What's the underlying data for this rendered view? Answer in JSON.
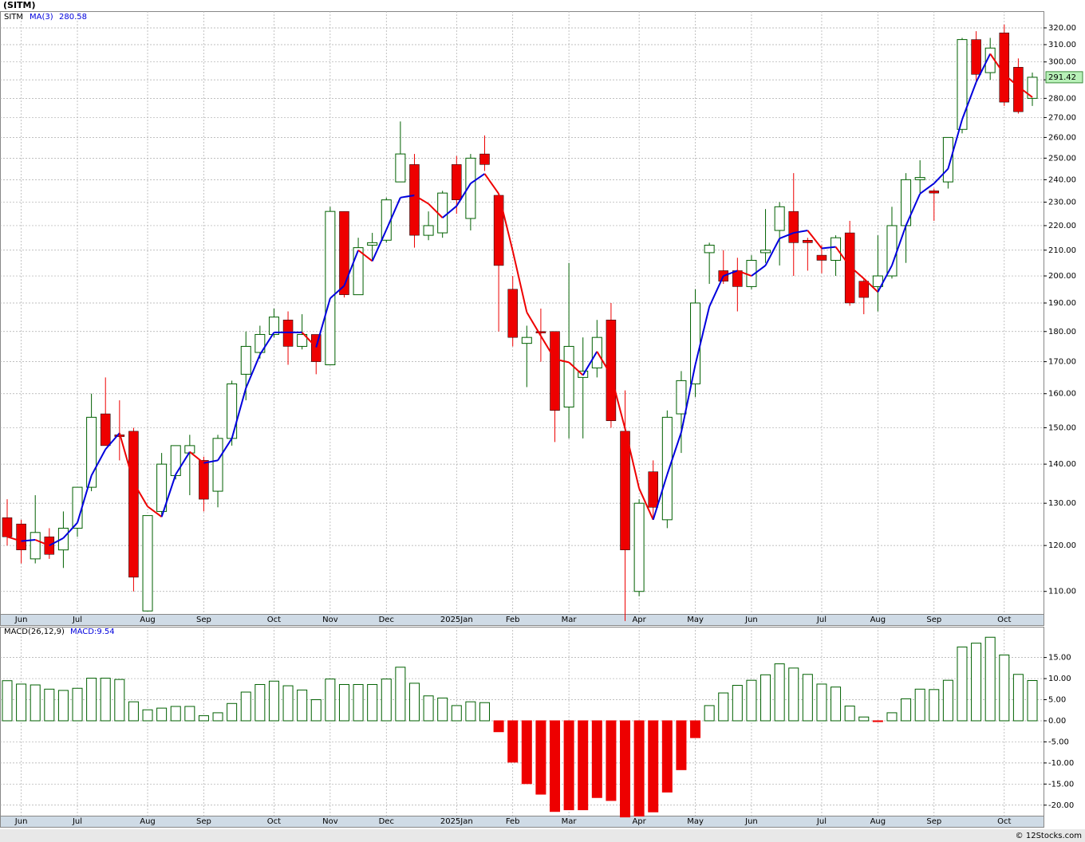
{
  "chart_data": [
    {
      "type": "candlestick",
      "title": "(SITM)",
      "symbol": "SITM",
      "categories": [
        null,
        "Jun",
        null,
        null,
        null,
        "Jul",
        null,
        null,
        null,
        null,
        "Aug",
        null,
        null,
        null,
        "Sep",
        null,
        null,
        null,
        null,
        "Oct",
        null,
        null,
        null,
        "Nov",
        null,
        null,
        null,
        "Dec",
        null,
        null,
        null,
        null,
        "2025Jan",
        null,
        null,
        null,
        "Feb",
        null,
        null,
        null,
        "Mar",
        null,
        null,
        null,
        null,
        "Apr",
        null,
        null,
        null,
        "May",
        null,
        null,
        null,
        "Jun",
        null,
        null,
        null,
        null,
        "Jul",
        null,
        null,
        null,
        "Aug",
        null,
        null,
        null,
        "Sep",
        null,
        null,
        null,
        null,
        "Oct",
        null,
        null
      ],
      "open": [
        126.5,
        125,
        117,
        122,
        119,
        124,
        134,
        154,
        148,
        149,
        106,
        128,
        137,
        143,
        141,
        133,
        147,
        166,
        173,
        179,
        184,
        175,
        179,
        169,
        226,
        193,
        212,
        214,
        239,
        247,
        216,
        217,
        247,
        223,
        252,
        233,
        195,
        176,
        180,
        180,
        156,
        165,
        168,
        184,
        149,
        110,
        138,
        126,
        154,
        163,
        209,
        202,
        202,
        196,
        209,
        218,
        226,
        214,
        208,
        206,
        217,
        198,
        196,
        200,
        220,
        240,
        235,
        239,
        264,
        313,
        294,
        317,
        297,
        280
      ],
      "high": [
        131,
        126,
        132,
        124,
        128,
        134,
        160,
        165,
        158,
        150,
        127,
        143,
        145,
        148,
        142,
        148,
        164,
        180,
        182,
        188,
        187,
        186,
        179,
        228,
        226,
        215,
        217,
        232,
        268,
        252,
        226,
        235,
        251,
        252,
        261,
        234,
        200,
        182,
        188,
        180,
        205,
        178,
        184,
        190,
        161,
        131,
        141,
        155,
        167,
        195,
        213,
        210,
        207,
        208,
        227,
        230,
        243,
        215,
        212,
        216,
        222,
        199,
        216,
        228,
        243,
        249,
        236,
        260,
        314,
        318,
        314,
        322,
        302,
        294
      ],
      "low": [
        120,
        116,
        116,
        117,
        115,
        122,
        133,
        145,
        141,
        110,
        106,
        127,
        136,
        132,
        128,
        129,
        145,
        158,
        171,
        178,
        169,
        174,
        166,
        169,
        192,
        193,
        206,
        213,
        239,
        211,
        214,
        215,
        225,
        218,
        244,
        180,
        175,
        162,
        170,
        146,
        147,
        147,
        165,
        150,
        104,
        109,
        126,
        124,
        143,
        159,
        197,
        197,
        187,
        195,
        205,
        204,
        200,
        202,
        201,
        200,
        189,
        186,
        187,
        199,
        205,
        234,
        222,
        236,
        262,
        289,
        290,
        276,
        272,
        276
      ],
      "close": [
        122,
        119,
        123,
        118,
        124,
        134,
        153,
        145,
        147.5,
        113,
        127,
        140,
        145,
        145,
        131,
        147,
        163,
        175,
        179,
        185,
        175,
        179,
        170,
        226,
        193,
        211,
        213,
        231,
        252,
        216,
        220,
        234,
        231,
        250,
        247,
        204,
        178,
        178,
        179.5,
        155,
        175,
        167,
        178,
        152,
        119,
        130,
        129,
        153,
        164,
        190,
        212,
        198,
        196,
        206,
        210,
        228,
        213,
        213,
        206,
        215,
        190,
        192,
        200,
        220,
        240,
        241,
        234,
        260,
        313,
        293,
        308,
        278,
        273,
        291.42
      ],
      "up_color": "#006000",
      "down_color": "#ee0000",
      "ma": {
        "name": "MA(3)",
        "label": "280.58",
        "up_color": "#0000dd",
        "down_color": "#ee0000",
        "values": [
          122,
          121,
          121.3,
          120,
          121.7,
          125.3,
          137,
          144,
          148.5,
          135.2,
          129.2,
          126.7,
          137.3,
          143.3,
          140.3,
          141,
          147,
          161.7,
          172.3,
          179.7,
          179.7,
          179.7,
          174.7,
          191.7,
          196.3,
          210,
          205.7,
          218.3,
          232,
          233,
          229.3,
          223.3,
          228.3,
          238.3,
          242.7,
          233.7,
          209.7,
          186.7,
          178.5,
          170.8,
          169.8,
          165.7,
          173.3,
          165.7,
          149.7,
          133.7,
          126,
          137.3,
          148.7,
          169,
          188.7,
          200,
          202,
          200,
          204,
          214.7,
          217,
          218,
          210.7,
          211.3,
          203.7,
          199,
          194,
          204,
          220,
          233.7,
          238.3,
          245,
          269,
          288.7,
          304.7,
          293,
          286.3,
          280.58
        ]
      },
      "log_scale": true,
      "grid": true,
      "ylim": [
        105.4,
        330.3
      ],
      "yticks": [
        {
          "value": 110,
          "label": "110.00"
        },
        {
          "value": 120,
          "label": "120.00"
        },
        {
          "value": 130,
          "label": "130.00"
        },
        {
          "value": 140,
          "label": "140.00"
        },
        {
          "value": 150,
          "label": "150.00"
        },
        {
          "value": 160,
          "label": "160.00"
        },
        {
          "value": 170,
          "label": "170.00"
        },
        {
          "value": 180,
          "label": "180.00"
        },
        {
          "value": 190,
          "label": "190.00"
        },
        {
          "value": 200,
          "label": "200.00"
        },
        {
          "value": 210,
          "label": "210.00"
        },
        {
          "value": 220,
          "label": "220.00"
        },
        {
          "value": 230,
          "label": "230.00"
        },
        {
          "value": 240,
          "label": "240.00"
        },
        {
          "value": 250,
          "label": "250.00"
        },
        {
          "value": 260,
          "label": "260.00"
        },
        {
          "value": 270,
          "label": "270.00"
        },
        {
          "value": 280,
          "label": "280.00"
        },
        {
          "value": 290,
          "label": "290.00"
        },
        {
          "value": 300,
          "label": "300.00"
        },
        {
          "value": 310,
          "label": "310.00"
        },
        {
          "value": 320,
          "label": "320.00"
        }
      ],
      "watermark": "© 12Stocks.com"
    },
    {
      "type": "bar",
      "title": "MACD(26,12,9)",
      "legend_label": "MACD:9.54",
      "values": [
        9.5,
        8.7,
        8.5,
        7.5,
        7.2,
        7.7,
        10.1,
        10.1,
        9.8,
        4.5,
        2.6,
        3.0,
        3.4,
        3.4,
        1.2,
        1.9,
        4.1,
        6.8,
        8.6,
        9.4,
        8.3,
        7.3,
        5.0,
        9.9,
        8.6,
        8.6,
        8.6,
        9.9,
        12.7,
        8.9,
        5.9,
        5.4,
        3.6,
        4.5,
        4.3,
        -2.6,
        -9.8,
        -14.9,
        -17.4,
        -21.5,
        -21.1,
        -21.1,
        -18.2,
        -18.9,
        -22.8,
        -22.6,
        -21.6,
        -16.9,
        -11.6,
        -4.0,
        3.6,
        6.6,
        8.4,
        9.6,
        10.9,
        13.5,
        12.5,
        11.0,
        8.7,
        8.0,
        3.5,
        0.9,
        -0.2,
        1.9,
        5.2,
        7.5,
        7.4,
        9.6,
        17.5,
        18.4,
        19.8,
        15.6,
        11.0,
        9.54
      ],
      "pos_color": "#006000",
      "neg_color": "#ee0000",
      "grid": true,
      "ylim": [
        -22.5,
        22.3
      ],
      "yticks": [
        {
          "value": 15,
          "label": "15.00"
        },
        {
          "value": 10,
          "label": "10.00"
        },
        {
          "value": 5,
          "label": "5.00"
        },
        {
          "value": 0,
          "label": "0.00"
        },
        {
          "value": -5,
          "label": "-5.00"
        },
        {
          "value": -10,
          "label": "-10.00"
        },
        {
          "value": -15,
          "label": "-15.00"
        },
        {
          "value": -20,
          "label": "-20.00"
        }
      ]
    }
  ]
}
